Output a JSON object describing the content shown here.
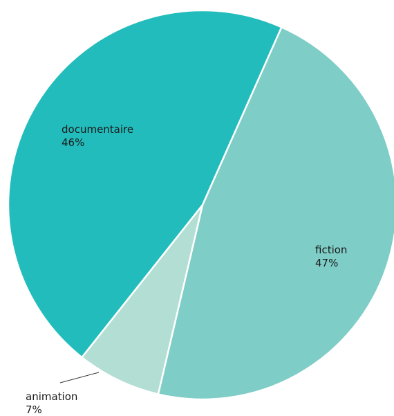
{
  "chart_data": {
    "type": "pie",
    "title": "",
    "slices": [
      {
        "label": "fiction",
        "percent_label": "47%",
        "value": 47,
        "color": "#7ecdc6"
      },
      {
        "label": "animation",
        "percent_label": "7%",
        "value": 7,
        "color": "#b3ded4"
      },
      {
        "label": "documentaire",
        "percent_label": "46%",
        "value": 46,
        "color": "#22bcbc"
      }
    ],
    "legend": "none",
    "start_angle_deg": 24
  }
}
